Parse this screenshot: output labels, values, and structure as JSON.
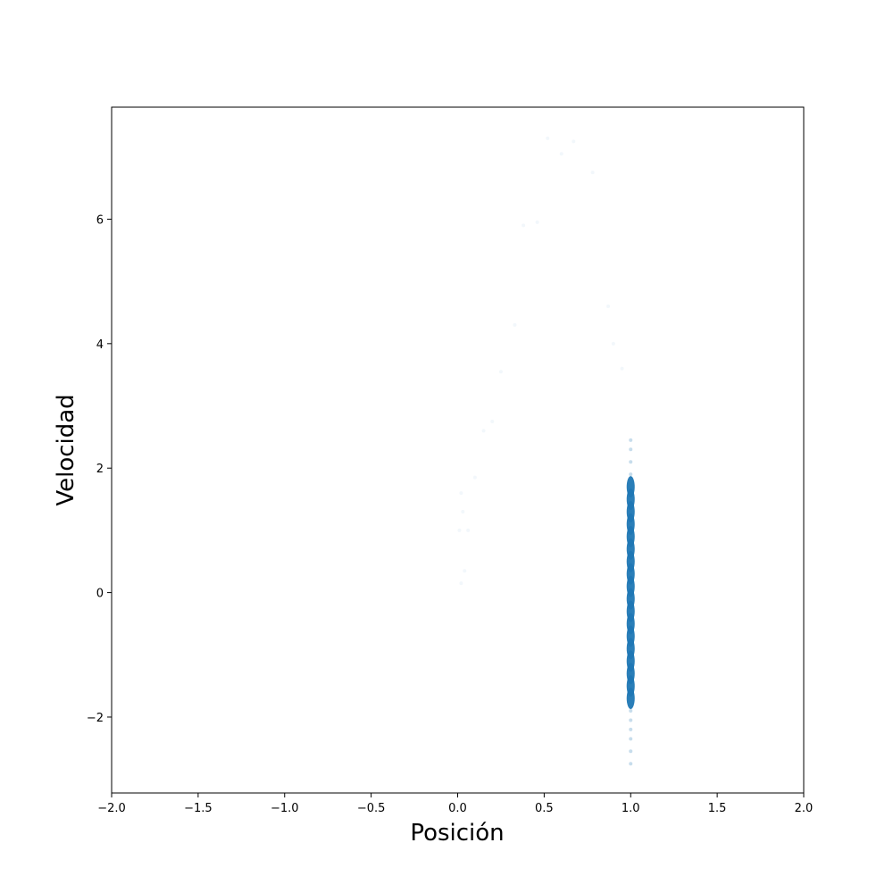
{
  "chart_data": {
    "type": "scatter",
    "title": "",
    "xlabel": "Posición",
    "ylabel": "Velocidad",
    "xlim": [
      -2.0,
      2.0
    ],
    "ylim": [
      -3.22,
      7.8
    ],
    "xticks": [
      -2.0,
      -1.5,
      -1.0,
      -0.5,
      0.0,
      0.5,
      1.0,
      1.5,
      2.0
    ],
    "xtick_labels": [
      "−2.0",
      "−1.5",
      "−1.0",
      "−0.5",
      "0.0",
      "0.5",
      "1.0",
      "1.5",
      "2.0"
    ],
    "yticks": [
      -2,
      0,
      2,
      4,
      6
    ],
    "ytick_labels": [
      "−2",
      "0",
      "2",
      "4",
      "6"
    ],
    "grid": false,
    "legend": "none",
    "marker_color": "#1f77b4",
    "series": [
      {
        "values_description_free": true,
        "points": [
          [
            1.0,
            -2.75
          ],
          [
            1.0,
            -2.55
          ],
          [
            1.0,
            -2.35
          ],
          [
            1.0,
            -2.2
          ],
          [
            1.0,
            -2.05
          ],
          [
            1.0,
            -1.9
          ],
          [
            1.0,
            -1.7
          ],
          [
            1.0,
            -1.5
          ],
          [
            1.0,
            -1.3
          ],
          [
            1.0,
            -1.1
          ],
          [
            1.0,
            -0.9
          ],
          [
            1.0,
            -0.7
          ],
          [
            1.0,
            -0.5
          ],
          [
            1.0,
            -0.3
          ],
          [
            1.0,
            -0.1
          ],
          [
            1.0,
            0.1
          ],
          [
            1.0,
            0.3
          ],
          [
            1.0,
            0.5
          ],
          [
            1.0,
            0.7
          ],
          [
            1.0,
            0.9
          ],
          [
            1.0,
            1.1
          ],
          [
            1.0,
            1.3
          ],
          [
            1.0,
            1.5
          ],
          [
            1.0,
            1.7
          ],
          [
            1.0,
            1.9
          ],
          [
            1.0,
            2.1
          ],
          [
            1.0,
            2.3
          ],
          [
            1.0,
            2.45
          ],
          [
            0.02,
            0.15
          ],
          [
            0.04,
            0.35
          ],
          [
            0.01,
            1.0
          ],
          [
            0.06,
            1.0
          ],
          [
            0.03,
            1.3
          ],
          [
            0.02,
            1.6
          ],
          [
            0.1,
            1.85
          ],
          [
            0.15,
            2.6
          ],
          [
            0.2,
            2.75
          ],
          [
            0.25,
            3.55
          ],
          [
            0.33,
            4.3
          ],
          [
            0.38,
            5.9
          ],
          [
            0.46,
            5.95
          ],
          [
            0.52,
            7.3
          ],
          [
            0.6,
            7.05
          ],
          [
            0.67,
            7.25
          ],
          [
            0.78,
            6.75
          ],
          [
            0.87,
            4.6
          ],
          [
            0.9,
            4.0
          ],
          [
            0.95,
            3.6
          ]
        ]
      }
    ]
  }
}
